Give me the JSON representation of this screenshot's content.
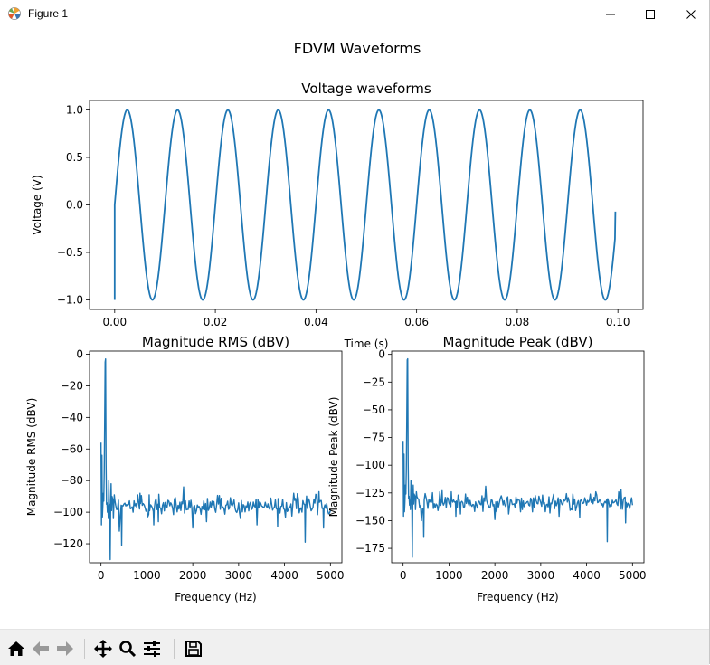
{
  "window": {
    "title": "Figure 1",
    "icons": [
      "matplotlib-logo-icon",
      "minimize-icon",
      "maximize-icon",
      "close-icon"
    ]
  },
  "figure": {
    "suptitle": "FDVM Waveforms"
  },
  "chart_data": [
    {
      "type": "line",
      "title": "Voltage waveforms",
      "xlabel": "Time (s)",
      "ylabel": "Voltage (V)",
      "xlim": [
        -0.005,
        0.105
      ],
      "ylim": [
        -1.1,
        1.1
      ],
      "xticks": [
        "0.00",
        "0.02",
        "0.04",
        "0.06",
        "0.08",
        "0.10"
      ],
      "yticks": [
        "−1.0",
        "−0.5",
        "0.0",
        "0.5",
        "1.0"
      ],
      "series": [
        {
          "frequency_hz": 100,
          "amplitude_v": 1.0,
          "t_start": 0.0,
          "t_end": 0.0995,
          "start_value": -1.0,
          "end_value": -0.07,
          "color": "#1f77b4"
        }
      ],
      "grid": false
    },
    {
      "type": "line",
      "title": "Magnitude RMS (dBV)",
      "xlabel": "Frequency (Hz)",
      "ylabel": "Magnitude RMS (dBV)",
      "xlim": [
        -250,
        5250
      ],
      "ylim": [
        -132,
        2
      ],
      "xticks": [
        "0",
        "1000",
        "2000",
        "3000",
        "4000",
        "5000"
      ],
      "yticks": [
        "−120",
        "−100",
        "−80",
        "−60",
        "−40",
        "−20",
        "0"
      ],
      "series": [
        {
          "color": "#1f77b4",
          "x": [
            0,
            10,
            20,
            30,
            40,
            50,
            60,
            70,
            80,
            90,
            100,
            110,
            120,
            130,
            140,
            150,
            160,
            170,
            180,
            190,
            200,
            210,
            220,
            230,
            240,
            250,
            260,
            270,
            280,
            290,
            300,
            400,
            450,
            600,
            700,
            800,
            850,
            1050,
            1150,
            1250,
            1800,
            2000,
            2300,
            3400,
            3700,
            3850,
            4200,
            4450,
            4700,
            4750,
            4850,
            5000
          ],
          "values": [
            -56,
            -108,
            -64,
            -103,
            -96,
            -88,
            -93,
            -75,
            -43,
            -5,
            -3,
            -70,
            -95,
            -94,
            -100,
            -96,
            -104,
            -80,
            -99,
            -95,
            -130,
            -96,
            -82,
            -99,
            -90,
            -91,
            -92,
            -104,
            -95,
            -89,
            -92,
            -112,
            -121,
            -95,
            -100,
            -89,
            -88,
            -89,
            -108,
            -106,
            -84,
            -110,
            -106,
            -108,
            -91,
            -109,
            -88,
            -119,
            -89,
            -87,
            -110,
            -99
          ]
        }
      ],
      "noise_floor": {
        "from_hz": 300,
        "to_hz": 5000,
        "center": -96,
        "spread": 9,
        "step_hz": 20
      },
      "grid": false
    },
    {
      "type": "line",
      "title": "Magnitude Peak (dBV)",
      "xlabel": "Frequency (Hz)",
      "ylabel": "Magnitude Peak (dBV)",
      "xlim": [
        -250,
        5250
      ],
      "ylim": [
        -188,
        3
      ],
      "xticks": [
        "0",
        "1000",
        "2000",
        "3000",
        "4000",
        "5000"
      ],
      "yticks": [
        "−175",
        "−150",
        "−125",
        "−100",
        "−75",
        "−50",
        "−25",
        "0"
      ],
      "series": [
        {
          "color": "#1f77b4",
          "x": [
            0,
            10,
            20,
            30,
            40,
            50,
            60,
            70,
            80,
            90,
            100,
            110,
            120,
            130,
            140,
            150,
            160,
            170,
            180,
            190,
            200,
            210,
            220,
            230,
            240,
            250,
            260,
            270,
            280,
            290,
            300,
            400,
            450,
            600,
            700,
            800,
            850,
            1050,
            1150,
            1250,
            1800,
            2000,
            2300,
            3400,
            3700,
            3850,
            4200,
            4450,
            4700,
            4750,
            4850,
            5000
          ],
          "values": [
            -78,
            -146,
            -90,
            -142,
            -133,
            -118,
            -126,
            -105,
            -60,
            -5,
            -4,
            -98,
            -130,
            -128,
            -136,
            -132,
            -140,
            -114,
            -135,
            -130,
            -183,
            -132,
            -118,
            -135,
            -126,
            -127,
            -128,
            -140,
            -131,
            -124,
            -128,
            -150,
            -165,
            -131,
            -138,
            -124,
            -123,
            -124,
            -146,
            -144,
            -119,
            -149,
            -144,
            -146,
            -126,
            -147,
            -124,
            -169,
            -124,
            -122,
            -152,
            -136
          ]
        }
      ],
      "noise_floor": {
        "from_hz": 300,
        "to_hz": 5000,
        "center": -134,
        "spread": 11,
        "step_hz": 20
      },
      "grid": false
    }
  ],
  "toolbar": {
    "icons": [
      "home-icon",
      "back-arrow-icon",
      "forward-arrow-icon",
      "pan-icon",
      "zoom-icon",
      "configure-subplots-icon",
      "save-icon"
    ]
  }
}
